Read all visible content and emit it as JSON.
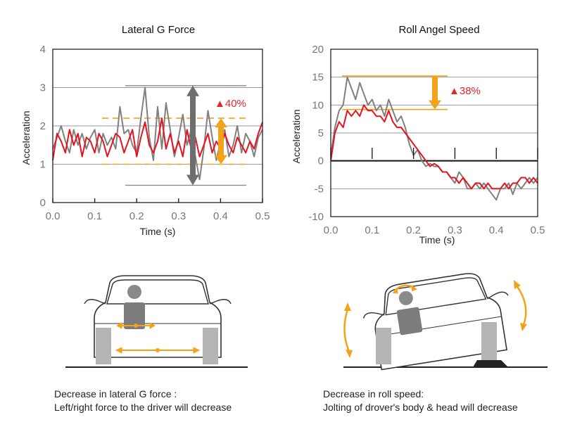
{
  "colors": {
    "before": "#808080",
    "after": "#e8121f",
    "accent": "#f3a31a",
    "dark_arrow": "#6e6e6e",
    "percent": "#e0262e"
  },
  "chart_data": [
    {
      "type": "line",
      "title": "Lateral G Force",
      "xlabel": "Time (s)",
      "ylabel": "Acceleration",
      "xlim": [
        0,
        0.5
      ],
      "ylim": [
        0,
        4
      ],
      "x_ticks": [
        "0.0",
        "0.1",
        "0.2",
        "0.3",
        "0.4",
        "0.5"
      ],
      "y_ticks": [
        "0",
        "1",
        "2",
        "3",
        "4"
      ],
      "annotation": "▲40%",
      "series": [
        {
          "x": [
            0,
            0.01,
            0.02,
            0.03,
            0.04,
            0.05,
            0.06,
            0.07,
            0.08,
            0.09,
            0.1,
            0.11,
            0.12,
            0.13,
            0.14,
            0.15,
            0.16,
            0.17,
            0.18,
            0.19,
            0.2,
            0.21,
            0.22,
            0.23,
            0.24,
            0.25,
            0.26,
            0.27,
            0.28,
            0.29,
            0.3,
            0.31,
            0.32,
            0.33,
            0.34,
            0.35,
            0.36,
            0.37,
            0.38,
            0.39,
            0.4,
            0.41,
            0.42,
            0.43,
            0.44,
            0.45,
            0.46,
            0.47,
            0.48,
            0.49,
            0.5
          ],
          "values": [
            1.4,
            1.7,
            2.0,
            1.6,
            1.3,
            1.9,
            1.5,
            1.8,
            1.4,
            1.7,
            1.9,
            1.3,
            1.8,
            1.5,
            1.7,
            1.4,
            2.5,
            1.8,
            1.9,
            1.5,
            1.3,
            2.2,
            3.0,
            1.7,
            1.1,
            2.5,
            1.4,
            2.6,
            1.9,
            1.2,
            1.7,
            2.3,
            1.5,
            1.9,
            1.2,
            0.6,
            1.4,
            2.4,
            1.7,
            1.1,
            1.6,
            1.9,
            1.2,
            1.5,
            2.0,
            1.3,
            1.8,
            1.6,
            1.2,
            1.7,
            1.9
          ]
        },
        {
          "x": [
            0,
            0.01,
            0.02,
            0.03,
            0.04,
            0.05,
            0.06,
            0.07,
            0.08,
            0.09,
            0.1,
            0.11,
            0.12,
            0.13,
            0.14,
            0.15,
            0.16,
            0.17,
            0.18,
            0.19,
            0.2,
            0.21,
            0.22,
            0.23,
            0.24,
            0.25,
            0.26,
            0.27,
            0.28,
            0.29,
            0.3,
            0.31,
            0.32,
            0.33,
            0.34,
            0.35,
            0.36,
            0.37,
            0.38,
            0.39,
            0.4,
            0.41,
            0.42,
            0.43,
            0.44,
            0.45,
            0.46,
            0.47,
            0.48,
            0.49,
            0.5
          ],
          "values": [
            1.1,
            1.8,
            1.6,
            1.3,
            1.9,
            1.5,
            1.8,
            1.2,
            1.7,
            1.6,
            1.3,
            1.8,
            1.6,
            1.2,
            1.5,
            1.8,
            1.7,
            1.3,
            1.6,
            1.9,
            1.2,
            1.7,
            2.1,
            1.5,
            1.3,
            1.6,
            2.2,
            1.4,
            1.8,
            1.3,
            1.6,
            1.2,
            1.9,
            1.4,
            1.7,
            1.2,
            1.5,
            1.8,
            1.3,
            1.6,
            1.4,
            1.8,
            1.5,
            1.3,
            1.7,
            1.5,
            1.3,
            1.6,
            1.4,
            1.8,
            2.1
          ]
        }
      ]
    },
    {
      "type": "line",
      "title": "Roll Angel Speed",
      "xlabel": "Time (s)",
      "ylabel": "Acceleration",
      "xlim": [
        0,
        0.5
      ],
      "ylim": [
        -10,
        20
      ],
      "x_ticks": [
        "0.0",
        "0.1",
        "0.2",
        "0.3",
        "0.4",
        "0.5"
      ],
      "y_ticks": [
        "20",
        "15",
        "10",
        "5",
        "0",
        "-5",
        "-10"
      ],
      "annotation": "▲38%",
      "series": [
        {
          "x": [
            0,
            0.01,
            0.02,
            0.03,
            0.04,
            0.05,
            0.06,
            0.07,
            0.08,
            0.09,
            0.1,
            0.11,
            0.12,
            0.13,
            0.14,
            0.15,
            0.16,
            0.17,
            0.18,
            0.19,
            0.2,
            0.21,
            0.22,
            0.23,
            0.24,
            0.25,
            0.26,
            0.27,
            0.28,
            0.29,
            0.3,
            0.31,
            0.32,
            0.33,
            0.34,
            0.35,
            0.36,
            0.37,
            0.38,
            0.39,
            0.4,
            0.41,
            0.42,
            0.43,
            0.44,
            0.45,
            0.46,
            0.47,
            0.48,
            0.49,
            0.5
          ],
          "values": [
            1,
            6,
            9,
            10,
            15,
            13,
            11,
            14,
            12,
            10,
            11,
            9,
            10,
            8,
            11,
            9,
            7,
            8,
            6,
            3,
            1,
            2,
            0,
            -1,
            -0.5,
            -1,
            -1,
            -2,
            -2,
            -3,
            -4,
            -2,
            -3,
            -5,
            -5,
            -4,
            -5,
            -4,
            -5,
            -6,
            -7,
            -5,
            -5,
            -4,
            -6,
            -4,
            -5,
            -4,
            -3,
            -4,
            -3
          ]
        },
        {
          "x": [
            0,
            0.01,
            0.02,
            0.03,
            0.04,
            0.05,
            0.06,
            0.07,
            0.08,
            0.09,
            0.1,
            0.11,
            0.12,
            0.13,
            0.14,
            0.15,
            0.16,
            0.17,
            0.18,
            0.19,
            0.2,
            0.21,
            0.22,
            0.23,
            0.24,
            0.25,
            0.26,
            0.27,
            0.28,
            0.29,
            0.3,
            0.31,
            0.32,
            0.33,
            0.34,
            0.35,
            0.36,
            0.37,
            0.38,
            0.39,
            0.4,
            0.41,
            0.42,
            0.43,
            0.44,
            0.45,
            0.46,
            0.47,
            0.48,
            0.49,
            0.5
          ],
          "values": [
            0,
            5,
            7,
            6,
            9,
            8,
            9,
            8,
            10,
            9,
            9,
            8,
            8,
            7,
            9,
            7,
            6,
            6,
            5,
            4,
            3,
            2,
            1,
            0,
            -1,
            -0.5,
            -1,
            -2,
            -2,
            -3,
            -3,
            -4,
            -3,
            -4,
            -5,
            -4,
            -4,
            -5,
            -4,
            -5,
            -5,
            -5,
            -4,
            -5,
            -4,
            -4,
            -3,
            -3,
            -4,
            -3,
            -4
          ]
        }
      ]
    }
  ],
  "captions": {
    "left": {
      "line1": "Decrease in lateral G force :",
      "line2": "Left/right force to the driver will decrease"
    },
    "right": {
      "line1": "Decrease in roll speed:",
      "line2": "Jolting of drover's body & head will decrease"
    }
  }
}
